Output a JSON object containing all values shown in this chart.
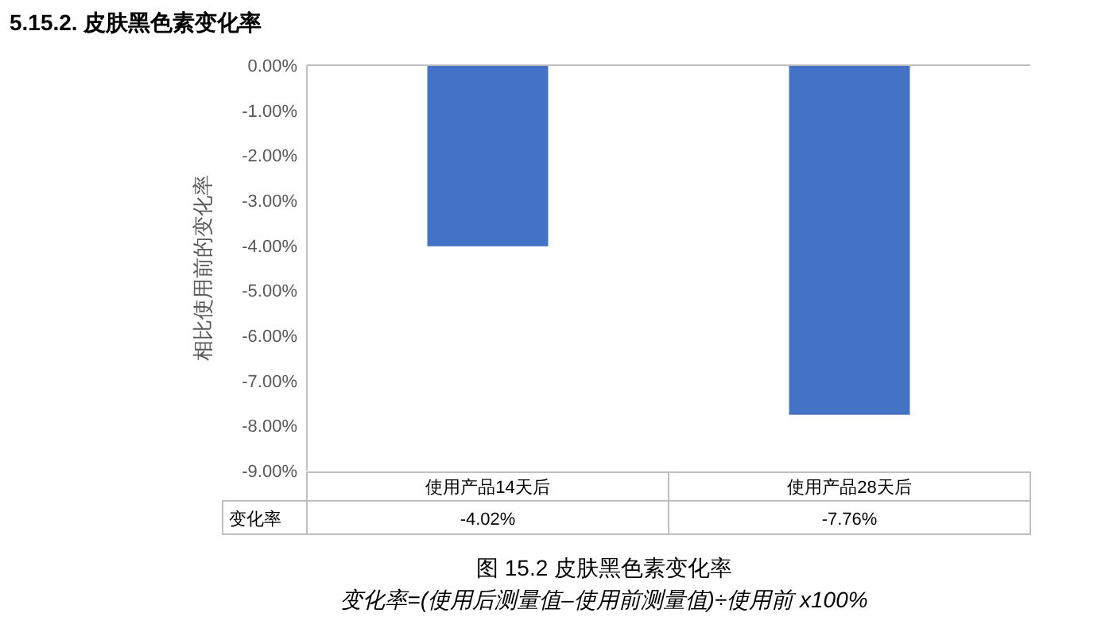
{
  "chart_data": {
    "type": "bar",
    "title": "5.15.2. 皮肤黑色素变化率",
    "ylabel": "相比使用前的变化率",
    "categories": [
      "使用产品14天后",
      "使用产品28天后"
    ],
    "series": [
      {
        "name": "变化率",
        "color": "#4472c4",
        "values": [
          -4.02,
          -7.76
        ],
        "value_labels": [
          "-4.02%",
          "-7.76%"
        ]
      }
    ],
    "ylim": [
      -9,
      0
    ],
    "yticks": [
      {
        "value": 0,
        "label": "0.00%"
      },
      {
        "value": -1,
        "label": "-1.00%"
      },
      {
        "value": -2,
        "label": "-2.00%"
      },
      {
        "value": -3,
        "label": "-3.00%"
      },
      {
        "value": -4,
        "label": "-4.00%"
      },
      {
        "value": -5,
        "label": "-5.00%"
      },
      {
        "value": -6,
        "label": "-6.00%"
      },
      {
        "value": -7,
        "label": "-7.00%"
      },
      {
        "value": -8,
        "label": "-8.00%"
      },
      {
        "value": -9,
        "label": "-9.00%"
      }
    ],
    "annotations": [
      "图 15.2 皮肤黑色素变化率",
      "变化率=(使用后测量值–使用前测量值)÷使用前 x100%"
    ]
  }
}
